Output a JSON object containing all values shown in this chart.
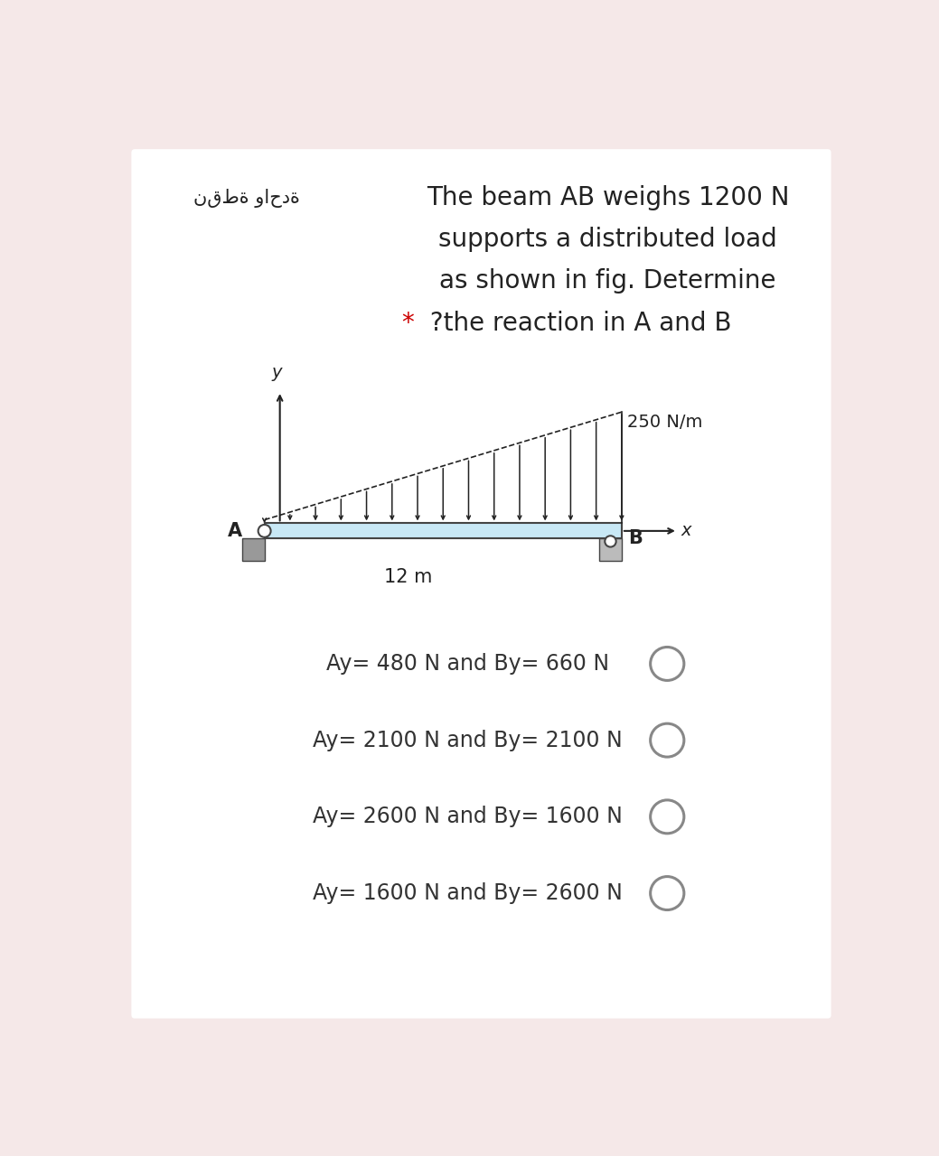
{
  "bg_color": "#f5e8e8",
  "white_card_color": "#ffffff",
  "title_arabic": "نقطة واحدة",
  "title_line1": "The beam AB weighs 1200 N",
  "title_line2": "supports a distributed load",
  "title_line3": "as shown in fig. Determine",
  "title_line4_star": "*",
  "title_line4_text": " ?the reaction in A and B",
  "load_label": "250 N/m",
  "length_label": "12 m",
  "label_A": "A",
  "label_B": "B",
  "label_x": "x",
  "label_y": "y",
  "options": [
    "Ay= 480 N and By= 660 N",
    "Ay= 2100 N and By= 2100 N",
    "Ay= 2600 N and By= 1600 N",
    "Ay= 1600 N and By= 2600 N"
  ],
  "beam_color": "#c8e8f5",
  "beam_border_color": "#444444",
  "arrow_color": "#222222",
  "support_color_A": "#999999",
  "support_color_B": "#bbbbbb",
  "text_color": "#222222",
  "star_color": "#cc0000",
  "option_text_color": "#333333",
  "circle_color": "#888888",
  "title_fontsize": 20,
  "arabic_fontsize": 15,
  "option_fontsize": 17,
  "diagram_label_fontsize": 14
}
